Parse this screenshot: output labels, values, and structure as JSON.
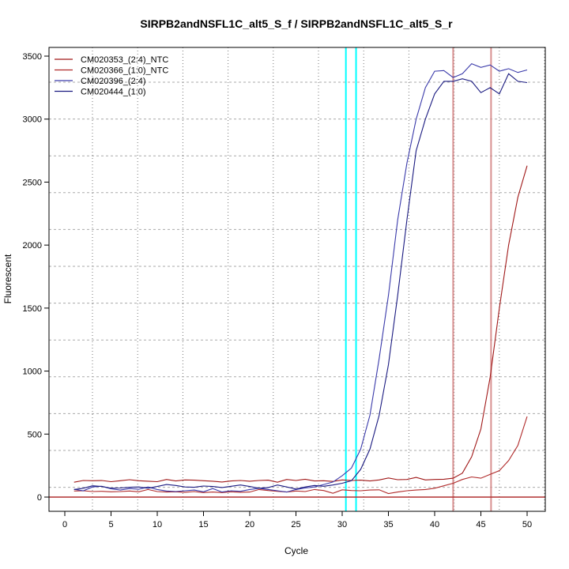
{
  "chart_data": {
    "type": "line",
    "title": "SIRPB2andNSFL1C_alt5_S_f / SIRPB2andNSFL1C_alt5_S_r",
    "xlabel": "Cycle",
    "ylabel": "Fluorescent",
    "xlim": [
      -2,
      52
    ],
    "ylim": [
      -120,
      3560
    ],
    "xticks": [
      0,
      5,
      10,
      15,
      20,
      25,
      30,
      35,
      40,
      45,
      50
    ],
    "yticks": [
      0,
      500,
      1000,
      1500,
      2000,
      2500,
      3000,
      3500
    ],
    "grid": true,
    "legend_position": "top-left",
    "x": [
      1,
      2,
      3,
      4,
      5,
      6,
      7,
      8,
      9,
      10,
      11,
      12,
      13,
      14,
      15,
      16,
      17,
      18,
      19,
      20,
      21,
      22,
      23,
      24,
      25,
      26,
      27,
      28,
      29,
      30,
      31,
      32,
      33,
      34,
      35,
      36,
      37,
      38,
      39,
      40,
      41,
      42,
      43,
      44,
      45,
      46,
      47,
      48,
      49,
      50
    ],
    "series": [
      {
        "name": "CM020353_(2:4)_NTC",
        "color": "#a01818",
        "values": [
          118,
          132,
          130,
          132,
          122,
          130,
          138,
          130,
          126,
          122,
          140,
          128,
          136,
          134,
          130,
          126,
          120,
          128,
          132,
          126,
          132,
          134,
          118,
          140,
          132,
          142,
          128,
          130,
          124,
          136,
          132,
          134,
          128,
          136,
          152,
          138,
          140,
          156,
          136,
          140,
          142,
          150,
          190,
          320,
          540,
          950,
          1500,
          2000,
          2380,
          2630
        ]
      },
      {
        "name": "CM020366_(1:0)_NTC",
        "color": "#b02a2a",
        "values": [
          48,
          50,
          44,
          46,
          42,
          44,
          48,
          42,
          60,
          44,
          40,
          42,
          38,
          44,
          36,
          40,
          36,
          42,
          38,
          40,
          60,
          52,
          46,
          40,
          48,
          44,
          60,
          52,
          30,
          58,
          52,
          50,
          56,
          58,
          28,
          40,
          50,
          56,
          60,
          70,
          90,
          110,
          140,
          160,
          150,
          180,
          210,
          290,
          410,
          640
        ]
      },
      {
        "name": "CM020396_(2:4)",
        "color": "#3a3aaa",
        "values": [
          62,
          50,
          80,
          86,
          66,
          56,
          68,
          62,
          80,
          60,
          48,
          44,
          50,
          56,
          42,
          68,
          40,
          50,
          46,
          60,
          70,
          60,
          50,
          40,
          60,
          72,
          80,
          100,
          120,
          170,
          230,
          380,
          650,
          1100,
          1600,
          2200,
          2650,
          3000,
          3250,
          3380,
          3385,
          3330,
          3360,
          3440,
          3410,
          3430,
          3380,
          3400,
          3370,
          3390
        ]
      },
      {
        "name": "CM020444_(1:0)",
        "color": "#1a1a80",
        "values": [
          60,
          70,
          90,
          84,
          70,
          72,
          78,
          80,
          70,
          84,
          100,
          92,
          80,
          78,
          88,
          84,
          76,
          86,
          96,
          84,
          70,
          76,
          96,
          80,
          64,
          80,
          92,
          86,
          96,
          110,
          130,
          220,
          380,
          650,
          1050,
          1600,
          2200,
          2750,
          3000,
          3200,
          3300,
          3300,
          3320,
          3300,
          3210,
          3250,
          3200,
          3360,
          3300,
          3290
        ]
      }
    ],
    "vertical_lines": [
      {
        "x": 30.4,
        "color": "#00ffff"
      },
      {
        "x": 31.5,
        "color": "#00ffff"
      },
      {
        "x": 42.0,
        "color": "#d89090"
      },
      {
        "x": 46.1,
        "color": "#d89090"
      }
    ],
    "threshold_line": {
      "y": 0,
      "color": "#b03030"
    }
  }
}
